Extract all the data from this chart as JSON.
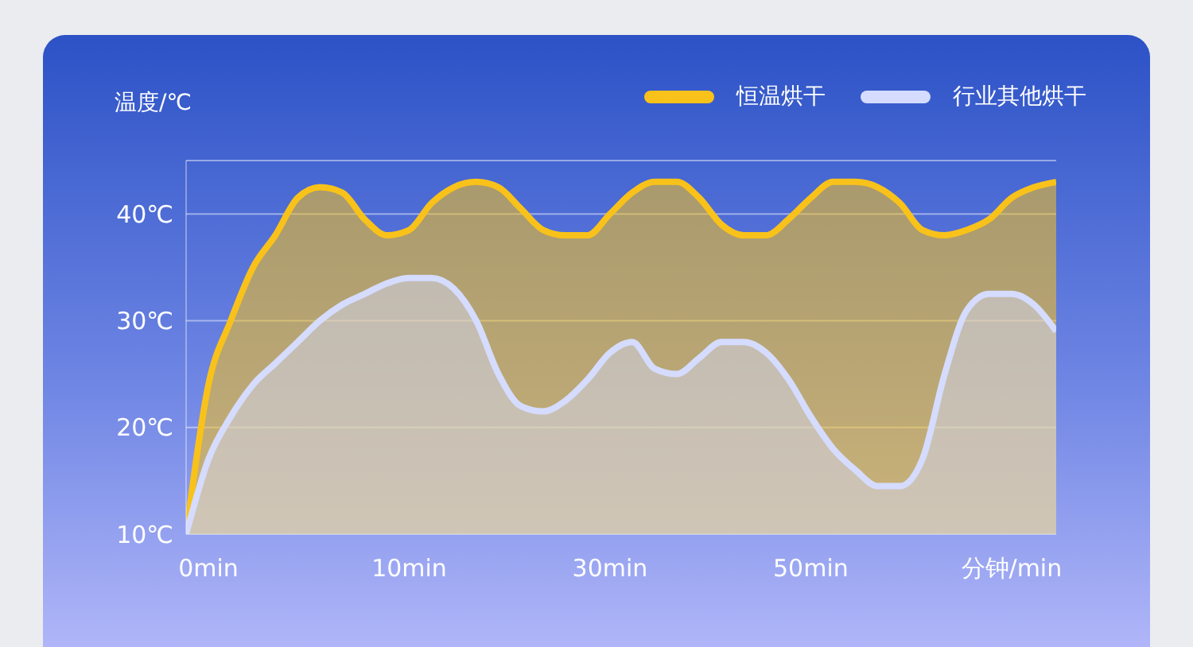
{
  "chart_data": {
    "type": "area",
    "ylabel": "温度/℃",
    "categories": [
      null,
      "0min",
      null,
      null,
      null,
      null,
      null,
      null,
      null,
      null,
      "10min",
      null,
      null,
      null,
      null,
      null,
      null,
      null,
      null,
      "30min",
      null,
      null,
      null,
      null,
      null,
      null,
      null,
      null,
      "50min",
      null,
      null,
      null,
      null,
      null,
      null,
      null,
      null,
      "分钟/min",
      null,
      null
    ],
    "series": [
      {
        "name": "恒温烘干",
        "color": "#f9c21a",
        "values": [
          10,
          24,
          30,
          35,
          38,
          41.5,
          42.5,
          42,
          39.5,
          38,
          38.5,
          41,
          42.5,
          43,
          42.5,
          40.5,
          38.5,
          38,
          38,
          40,
          42,
          43,
          43,
          41.5,
          39,
          38,
          38,
          39.5,
          41.5,
          43,
          43,
          42.5,
          41,
          38.5,
          38,
          38.5,
          39.5,
          41.5,
          42.5,
          43
        ]
      },
      {
        "name": "行业其他烘干",
        "color": "#d5dcff",
        "values": [
          10,
          17,
          21,
          24,
          26,
          28,
          30,
          31.5,
          32.5,
          33.5,
          34,
          34,
          33,
          30,
          25,
          22,
          21.5,
          22.5,
          24.5,
          27,
          28,
          25.5,
          25,
          26.5,
          28,
          28,
          27,
          24.5,
          21,
          18,
          16,
          14.5,
          14.5,
          17,
          25,
          31,
          32.5,
          32.5,
          31.5,
          29
        ]
      }
    ],
    "ylim": [
      10,
      45
    ],
    "yticks": [
      {
        "value": 10,
        "label": "10℃"
      },
      {
        "value": 20,
        "label": "20℃"
      },
      {
        "value": 30,
        "label": "30℃"
      },
      {
        "value": 40,
        "label": "40℃"
      }
    ],
    "grid": "y",
    "legend": "top right",
    "marker": "none",
    "line_style": "solid"
  }
}
